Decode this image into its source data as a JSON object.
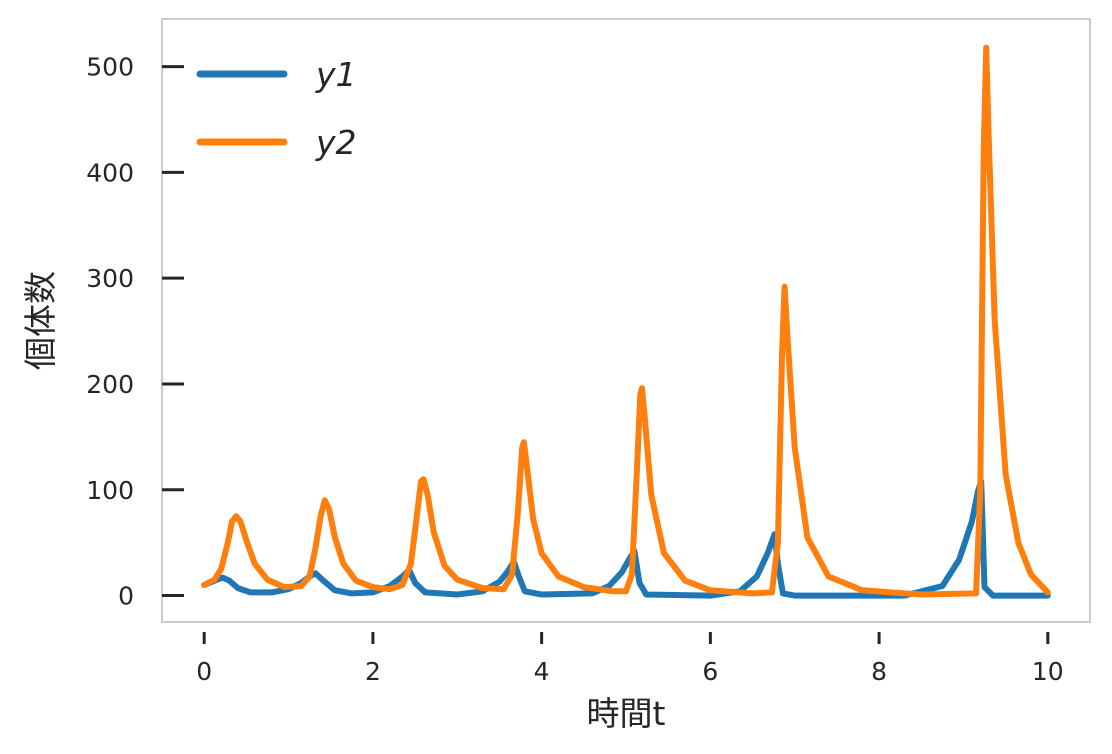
{
  "chart_data": {
    "type": "line",
    "title": "",
    "xlabel": "時間t",
    "ylabel": "個体数",
    "xlim": [
      -0.5,
      10.5
    ],
    "ylim": [
      -25,
      545
    ],
    "xticks": [
      0,
      2,
      4,
      6,
      8,
      10
    ],
    "yticks": [
      0,
      100,
      200,
      300,
      400,
      500
    ],
    "grid": false,
    "legend_position": "top-left",
    "series": [
      {
        "name": "y1",
        "color": "#1f77b4",
        "points": [
          [
            0,
            10
          ],
          [
            0.15,
            15
          ],
          [
            0.22,
            17
          ],
          [
            0.3,
            14
          ],
          [
            0.4,
            7
          ],
          [
            0.55,
            3
          ],
          [
            0.8,
            3
          ],
          [
            1.0,
            6
          ],
          [
            1.15,
            12
          ],
          [
            1.25,
            18
          ],
          [
            1.32,
            21
          ],
          [
            1.4,
            15
          ],
          [
            1.55,
            5
          ],
          [
            1.75,
            2
          ],
          [
            2.0,
            3
          ],
          [
            2.2,
            9
          ],
          [
            2.35,
            18
          ],
          [
            2.43,
            24
          ],
          [
            2.5,
            12
          ],
          [
            2.62,
            3
          ],
          [
            3.0,
            1
          ],
          [
            3.3,
            4
          ],
          [
            3.5,
            13
          ],
          [
            3.6,
            23
          ],
          [
            3.67,
            32
          ],
          [
            3.73,
            18
          ],
          [
            3.8,
            4
          ],
          [
            4.0,
            1
          ],
          [
            4.6,
            2
          ],
          [
            4.8,
            9
          ],
          [
            4.95,
            22
          ],
          [
            5.05,
            36
          ],
          [
            5.1,
            42
          ],
          [
            5.16,
            12
          ],
          [
            5.24,
            1
          ],
          [
            6.0,
            0
          ],
          [
            6.35,
            4
          ],
          [
            6.55,
            18
          ],
          [
            6.68,
            40
          ],
          [
            6.76,
            58
          ],
          [
            6.8,
            30
          ],
          [
            6.86,
            2
          ],
          [
            7.0,
            0
          ],
          [
            8.3,
            0
          ],
          [
            8.75,
            9
          ],
          [
            8.95,
            34
          ],
          [
            9.1,
            70
          ],
          [
            9.17,
            98
          ],
          [
            9.21,
            108
          ],
          [
            9.25,
            8
          ],
          [
            9.35,
            0
          ],
          [
            10.0,
            0
          ]
        ]
      },
      {
        "name": "y2",
        "color": "#ff7f0e",
        "points": [
          [
            0,
            10
          ],
          [
            0.12,
            15
          ],
          [
            0.2,
            25
          ],
          [
            0.28,
            50
          ],
          [
            0.33,
            70
          ],
          [
            0.38,
            75
          ],
          [
            0.43,
            70
          ],
          [
            0.5,
            52
          ],
          [
            0.6,
            30
          ],
          [
            0.75,
            15
          ],
          [
            0.95,
            8
          ],
          [
            1.15,
            9
          ],
          [
            1.25,
            18
          ],
          [
            1.32,
            45
          ],
          [
            1.38,
            75
          ],
          [
            1.43,
            90
          ],
          [
            1.48,
            82
          ],
          [
            1.55,
            55
          ],
          [
            1.65,
            30
          ],
          [
            1.8,
            14
          ],
          [
            2.0,
            8
          ],
          [
            2.2,
            6
          ],
          [
            2.35,
            10
          ],
          [
            2.45,
            30
          ],
          [
            2.52,
            75
          ],
          [
            2.57,
            108
          ],
          [
            2.6,
            110
          ],
          [
            2.65,
            95
          ],
          [
            2.72,
            60
          ],
          [
            2.85,
            28
          ],
          [
            3.0,
            15
          ],
          [
            3.3,
            7
          ],
          [
            3.55,
            6
          ],
          [
            3.65,
            20
          ],
          [
            3.72,
            80
          ],
          [
            3.77,
            140
          ],
          [
            3.79,
            145
          ],
          [
            3.82,
            125
          ],
          [
            3.9,
            72
          ],
          [
            4.0,
            40
          ],
          [
            4.2,
            18
          ],
          [
            4.5,
            8
          ],
          [
            4.85,
            4
          ],
          [
            5.0,
            4
          ],
          [
            5.07,
            20
          ],
          [
            5.13,
            120
          ],
          [
            5.17,
            190
          ],
          [
            5.19,
            196
          ],
          [
            5.22,
            170
          ],
          [
            5.3,
            95
          ],
          [
            5.45,
            40
          ],
          [
            5.7,
            14
          ],
          [
            6.0,
            5
          ],
          [
            6.5,
            2
          ],
          [
            6.73,
            3
          ],
          [
            6.8,
            50
          ],
          [
            6.85,
            230
          ],
          [
            6.88,
            292
          ],
          [
            6.91,
            250
          ],
          [
            7.0,
            140
          ],
          [
            7.15,
            55
          ],
          [
            7.4,
            18
          ],
          [
            7.8,
            5
          ],
          [
            8.5,
            1
          ],
          [
            9.15,
            2
          ],
          [
            9.2,
            100
          ],
          [
            9.24,
            420
          ],
          [
            9.27,
            518
          ],
          [
            9.3,
            430
          ],
          [
            9.37,
            260
          ],
          [
            9.5,
            115
          ],
          [
            9.65,
            50
          ],
          [
            9.8,
            20
          ],
          [
            10.0,
            3
          ]
        ]
      }
    ]
  }
}
